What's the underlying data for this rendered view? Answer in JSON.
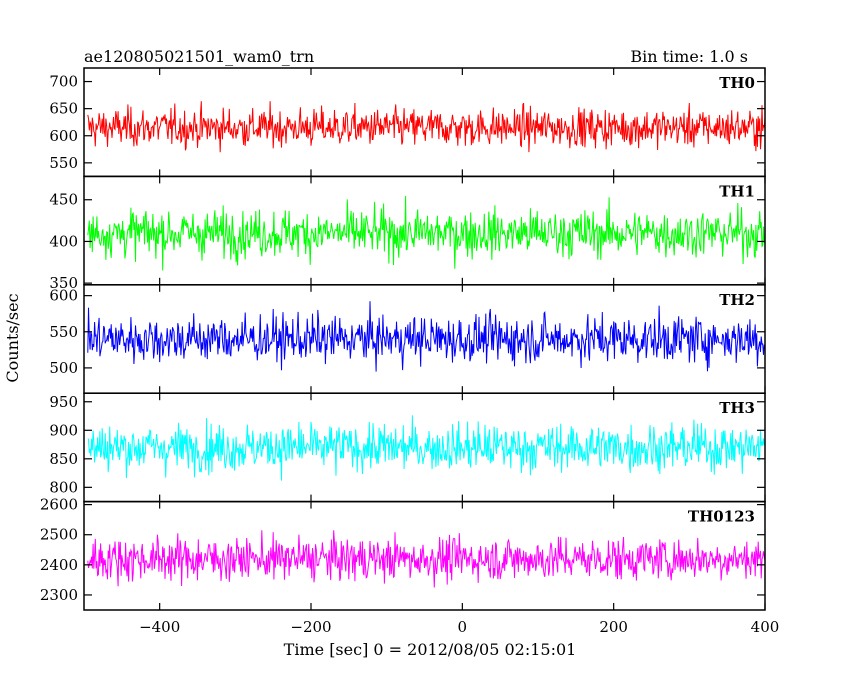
{
  "header": {
    "title": "ae120805021501_wam0_trn",
    "bin_time": "Bin time: 1.0 s"
  },
  "axes": {
    "xlabel": "Time [sec] 0 = 2012/08/05 02:15:01",
    "ylabel": "Counts/sec"
  },
  "colors": {
    "frame": "#000000",
    "background": "#ffffff"
  },
  "chart_data": {
    "type": "line",
    "title": "ae120805021501_wam0_trn",
    "xlabel": "Time [sec] 0 = 2012/08/05 02:15:01",
    "ylabel": "Counts/sec",
    "xlim": [
      -500,
      400
    ],
    "x_ticks": [
      -400,
      -200,
      0,
      200,
      400
    ],
    "x_tick_labels": [
      "−400",
      "−200",
      "0",
      "200",
      "400"
    ],
    "bin_seconds": 1.0,
    "grid": false,
    "panels": [
      {
        "name": "TH0",
        "color": "#ff0000",
        "ylim": [
          525,
          725
        ],
        "y_ticks": [
          550,
          600,
          650,
          700
        ],
        "y_tick_labels": [
          "550",
          "600",
          "650",
          "700"
        ],
        "mean": 615,
        "spread": 25
      },
      {
        "name": "TH1",
        "color": "#00ff00",
        "ylim": [
          348,
          478
        ],
        "y_ticks": [
          350,
          400,
          450
        ],
        "y_tick_labels": [
          "350",
          "400",
          "450"
        ],
        "mean": 410,
        "spread": 20
      },
      {
        "name": "TH2",
        "color": "#0000ff",
        "ylim": [
          465,
          615
        ],
        "y_ticks": [
          500,
          550,
          600
        ],
        "y_tick_labels": [
          "500",
          "550",
          "600"
        ],
        "mean": 540,
        "spread": 23
      },
      {
        "name": "TH3",
        "color": "#00ffff",
        "ylim": [
          775,
          965
        ],
        "y_ticks": [
          800,
          850,
          900,
          950
        ],
        "y_tick_labels": [
          "800",
          "850",
          "900",
          "950"
        ],
        "mean": 870,
        "spread": 29
      },
      {
        "name": "TH0123",
        "color": "#ff00ff",
        "ylim": [
          2250,
          2610
        ],
        "y_ticks": [
          2300,
          2400,
          2500,
          2600
        ],
        "y_tick_labels": [
          "2300",
          "2400",
          "2500",
          "2600"
        ],
        "mean": 2420,
        "spread": 50
      }
    ]
  }
}
